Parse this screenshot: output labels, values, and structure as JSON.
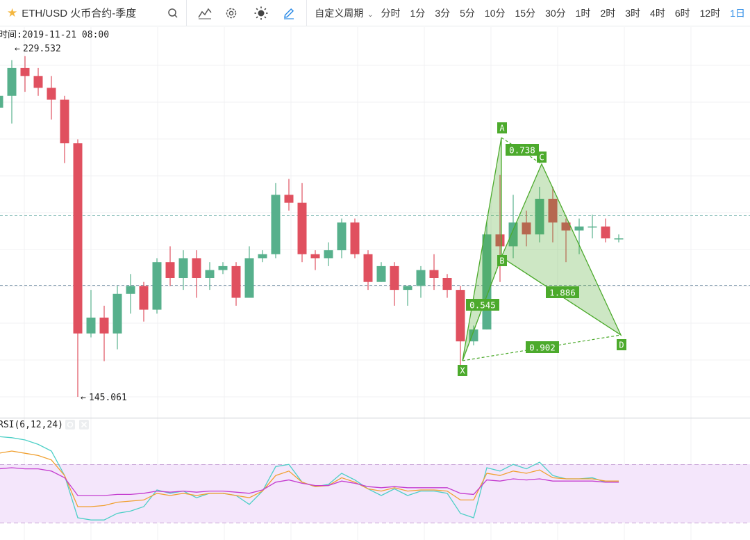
{
  "header": {
    "symbol": "ETH/USD 火币合约-季度",
    "custom_period": "自定义周期",
    "periods": [
      "分时",
      "1分",
      "3分",
      "5分",
      "10分",
      "15分",
      "30分",
      "1时",
      "2时",
      "3时",
      "4时",
      "6时",
      "12时",
      "1日"
    ],
    "active_period": "1日"
  },
  "icons": {
    "favorite": "star-icon",
    "search": "search-icon",
    "indicators": "indicator-icon",
    "settings": "gear-icon",
    "theme": "sun-icon",
    "draw": "pencil-icon",
    "dropdown": "chevron-down-icon"
  },
  "colors": {
    "up": "#57b08c",
    "down": "#e0505f",
    "pattern": "#4caa2c",
    "accent": "#2a8ae6",
    "rsi6": "#4ccfc6",
    "rsi12": "#f0a030",
    "rsi24": "#c43ccf",
    "rsi_band": "#f4e6fb"
  },
  "info": {
    "time_label": "时间:2019-11-21 08:00",
    "high_label": "229.532",
    "low_label": "145.061"
  },
  "pattern_labels": {
    "points": [
      "A",
      "B",
      "C",
      "D",
      "X"
    ],
    "ratios": [
      "0.738",
      "0.545",
      "1.886",
      "0.902"
    ]
  },
  "rsi": {
    "title": "RSI(6,12,24)"
  },
  "chart_data": {
    "type": "candlestick",
    "candles": [
      [
        218,
        221,
        216,
        227
      ],
      [
        221,
        228,
        214,
        230
      ],
      [
        228,
        226,
        222,
        231
      ],
      [
        226,
        223,
        221,
        228
      ],
      [
        223,
        220,
        215,
        226
      ],
      [
        220,
        209,
        204,
        221
      ],
      [
        209,
        161,
        145,
        210
      ],
      [
        161,
        165,
        160,
        172
      ],
      [
        165,
        161,
        154,
        168
      ],
      [
        161,
        171,
        157,
        173
      ],
      [
        171,
        173,
        166,
        176
      ],
      [
        173,
        167,
        164,
        174
      ],
      [
        167,
        179,
        166,
        180
      ],
      [
        179,
        175,
        173,
        183
      ],
      [
        175,
        180,
        172,
        182
      ],
      [
        180,
        175,
        170,
        182
      ],
      [
        175,
        177,
        172,
        179
      ],
      [
        177,
        178,
        176,
        179
      ],
      [
        178,
        170,
        168,
        179
      ],
      [
        170,
        180,
        170,
        183
      ],
      [
        180,
        181,
        179,
        182
      ],
      [
        181,
        196,
        180,
        199
      ],
      [
        196,
        194,
        192,
        200
      ],
      [
        194,
        181,
        179,
        199
      ],
      [
        181,
        180,
        177,
        182
      ],
      [
        180,
        182,
        178,
        184
      ],
      [
        182,
        189,
        180,
        190
      ],
      [
        189,
        181,
        180,
        190
      ],
      [
        181,
        174,
        172,
        182
      ],
      [
        174,
        178,
        174,
        179
      ],
      [
        178,
        172,
        168,
        179
      ],
      [
        172,
        173,
        168,
        173
      ],
      [
        173,
        177,
        170,
        178
      ],
      [
        177,
        175,
        172,
        181
      ],
      [
        175,
        172,
        170,
        176
      ],
      [
        172,
        159,
        153,
        173
      ],
      [
        159,
        162,
        158,
        163
      ],
      [
        162,
        186,
        162,
        189
      ],
      [
        186,
        183,
        174,
        201
      ],
      [
        183,
        189,
        180,
        196
      ],
      [
        189,
        186,
        183,
        192
      ],
      [
        186,
        195,
        184,
        198
      ],
      [
        195,
        189,
        184,
        198
      ],
      [
        189,
        187,
        179,
        190
      ],
      [
        187,
        188,
        181,
        190
      ],
      [
        188,
        188,
        185,
        191
      ],
      [
        188,
        185,
        184,
        190
      ],
      [
        185,
        185,
        184,
        186
      ]
    ],
    "rsi_series": {
      "rsi6": [
        93,
        92,
        90,
        86,
        80,
        58,
        20,
        18,
        18,
        24,
        26,
        30,
        45,
        42,
        44,
        38,
        42,
        42,
        40,
        32,
        44,
        66,
        68,
        52,
        48,
        50,
        60,
        54,
        46,
        40,
        46,
        40,
        44,
        44,
        42,
        24,
        20,
        65,
        62,
        68,
        64,
        70,
        58,
        55,
        55,
        56,
        52,
        52
      ],
      "rsi12": [
        78,
        80,
        78,
        76,
        72,
        58,
        30,
        30,
        31,
        34,
        35,
        36,
        42,
        40,
        42,
        40,
        42,
        42,
        40,
        38,
        44,
        58,
        62,
        52,
        48,
        49,
        56,
        52,
        46,
        44,
        47,
        44,
        45,
        45,
        44,
        36,
        36,
        60,
        58,
        62,
        60,
        63,
        56,
        55,
        55,
        55,
        53,
        53
      ],
      "rsi24": [
        64,
        65,
        64,
        64,
        62,
        56,
        40,
        40,
        40,
        41,
        41,
        42,
        44,
        43,
        44,
        43,
        44,
        44,
        43,
        42,
        45,
        52,
        54,
        51,
        49,
        49,
        53,
        51,
        48,
        47,
        48,
        47,
        47,
        47,
        47,
        42,
        41,
        54,
        53,
        55,
        54,
        55,
        53,
        53,
        53,
        53,
        52,
        52
      ]
    }
  }
}
